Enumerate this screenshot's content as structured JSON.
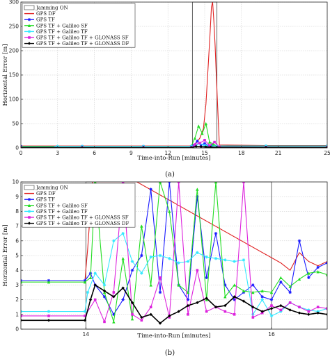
{
  "chart_data": [
    {
      "type": "line",
      "panel_caption": "(a)",
      "xlabel": "Time-into-Run [minutes]",
      "ylabel": "Horizontal Error [m]",
      "xlim": [
        0,
        25
      ],
      "ylim": [
        0,
        300
      ],
      "xticks": [
        0,
        3,
        6,
        9,
        12,
        15,
        18,
        21,
        25
      ],
      "yticks": [
        0,
        50,
        100,
        150,
        200,
        250,
        300
      ],
      "grid": true,
      "legend_position": "top-left",
      "jamming_band": [
        14,
        16
      ],
      "series": [
        {
          "name": "Jamming ON",
          "color": "#666666",
          "style": "box",
          "x": [],
          "y": []
        },
        {
          "name": "GPS DF",
          "color": "#e02020",
          "marker": "none",
          "x": [
            0,
            5,
            10,
            14,
            14.3,
            14.6,
            14.9,
            15.1,
            15.3,
            15.45,
            15.55,
            15.65,
            15.75,
            15.85,
            15.95,
            16.2,
            20,
            25
          ],
          "y": [
            4,
            4,
            4,
            4,
            10,
            20,
            40,
            90,
            175,
            240,
            290,
            300,
            260,
            210,
            148,
            6,
            5,
            5
          ]
        },
        {
          "name": "GPS TF",
          "color": "#1a1aff",
          "marker": "star",
          "x": [
            0,
            5,
            10,
            13.9,
            14.1,
            14.4,
            14.7,
            15.0,
            15.3,
            15.6,
            16.0,
            20,
            25
          ],
          "y": [
            3.5,
            3.5,
            3.5,
            3.5,
            5,
            14,
            6,
            9,
            4,
            5,
            4,
            4,
            4
          ]
        },
        {
          "name": "GPS TF + Galileo SF",
          "color": "#22dd22",
          "marker": "triangle",
          "x": [
            0,
            5,
            10,
            13.9,
            14.2,
            14.5,
            14.8,
            15.1,
            15.4,
            15.7,
            16.0,
            20,
            25
          ],
          "y": [
            3.2,
            3.2,
            3.3,
            3.3,
            20,
            45,
            30,
            50,
            12,
            8,
            4,
            4,
            4
          ]
        },
        {
          "name": "GPS TF + Galileo TF",
          "color": "#33e8ff",
          "marker": "star",
          "x": [
            0,
            2.8,
            3.0,
            5,
            10,
            13.9,
            14.3,
            14.6,
            15.0,
            15.4,
            16.0,
            20,
            25
          ],
          "y": [
            1.2,
            1.2,
            3.3,
            3.3,
            3.3,
            3.4,
            6,
            9,
            5,
            4,
            4,
            4,
            4
          ]
        },
        {
          "name": "GPS TF + Galileo TF + GLONASS SF",
          "color": "#dd22dd",
          "marker": "square",
          "x": [
            0,
            5,
            10,
            13.9,
            14.2,
            14.6,
            15.0,
            15.4,
            15.8,
            16.2,
            20,
            25
          ],
          "y": [
            0.9,
            1,
            1,
            1,
            7,
            10,
            16,
            5,
            12,
            2,
            1.5,
            1.5
          ]
        },
        {
          "name": "GPS TF + Galileo TF + GLONASS DF",
          "color": "#000000",
          "marker": "diamond",
          "x": [
            0,
            5,
            10,
            13.9,
            14.3,
            14.7,
            15.1,
            15.5,
            16.0,
            20,
            25
          ],
          "y": [
            0.6,
            0.6,
            0.7,
            0.7,
            3,
            2.5,
            2,
            1.5,
            1.3,
            1.1,
            1
          ]
        }
      ]
    },
    {
      "type": "line",
      "panel_caption": "(b)",
      "xlabel": "Time-into-Run [minutes]",
      "ylabel": "Horizontal Error [m]",
      "xlim": [
        13.3,
        16.6
      ],
      "ylim": [
        0,
        10
      ],
      "xticks": [
        14,
        16
      ],
      "yticks": [
        0,
        1,
        2,
        3,
        4,
        5,
        6,
        7,
        8,
        9,
        10
      ],
      "grid": true,
      "legend_position": "top-left",
      "jamming_band": [
        14,
        16
      ],
      "series": [
        {
          "name": "Jamming ON",
          "color": "#666666",
          "style": "box",
          "x": [],
          "y": []
        },
        {
          "name": "GPS DF",
          "color": "#e02020",
          "marker": "none",
          "x": [
            13.3,
            13.6,
            13.99,
            14.02,
            14.07,
            14.12,
            14.15,
            14.2,
            14.3,
            14.4,
            14.45,
            14.5,
            14.55,
            16.1,
            16.2,
            16.3,
            16.4,
            16.5,
            16.6
          ],
          "y": [
            3.3,
            3.3,
            3.3,
            5.5,
            10,
            10,
            10,
            10,
            10,
            10,
            10,
            10,
            10,
            4.5,
            4.0,
            5.2,
            4.6,
            4.3,
            4.6
          ]
        },
        {
          "name": "GPS TF",
          "color": "#1a1aff",
          "marker": "star",
          "x": [
            13.3,
            13.6,
            13.99,
            14.05,
            14.1,
            14.2,
            14.3,
            14.4,
            14.5,
            14.6,
            14.7,
            14.8,
            14.9,
            15.0,
            15.1,
            15.2,
            15.3,
            15.4,
            15.5,
            15.6,
            15.7,
            15.8,
            15.9,
            16.0,
            16.1,
            16.2,
            16.3,
            16.4,
            16.5,
            16.6
          ],
          "y": [
            3.3,
            3.3,
            3.3,
            3.8,
            3.0,
            2.2,
            1.0,
            2.0,
            4.0,
            5.0,
            9.5,
            2.5,
            10,
            3.0,
            2.0,
            9.0,
            3.5,
            6.5,
            3.0,
            2.0,
            2.5,
            3.0,
            2.2,
            2.0,
            3.2,
            2.5,
            6.0,
            3.5,
            4.2,
            4.5
          ]
        },
        {
          "name": "GPS TF + Galileo SF",
          "color": "#22dd22",
          "marker": "triangle",
          "x": [
            13.3,
            13.6,
            13.99,
            14.05,
            14.1,
            14.2,
            14.3,
            14.4,
            14.5,
            14.6,
            14.7,
            14.8,
            14.9,
            15.0,
            15.1,
            15.2,
            15.3,
            15.4,
            15.5,
            15.6,
            15.7,
            15.8,
            15.9,
            16.0,
            16.1,
            16.2,
            16.3,
            16.4,
            16.5,
            16.6
          ],
          "y": [
            3.2,
            3.2,
            3.2,
            3.5,
            10,
            2.5,
            0.5,
            4.8,
            0.7,
            7.0,
            3.0,
            10,
            8.0,
            3.0,
            2.5,
            9.5,
            2.0,
            10,
            2.2,
            3.0,
            2.6,
            2.5,
            2.6,
            2.5,
            3.5,
            2.9,
            3.4,
            3.8,
            3.9,
            3.7
          ]
        },
        {
          "name": "GPS TF + Galileo TF",
          "color": "#33e8ff",
          "marker": "star",
          "x": [
            13.3,
            13.6,
            13.99,
            14.02,
            14.1,
            14.2,
            14.3,
            14.4,
            14.5,
            14.6,
            14.7,
            14.8,
            14.9,
            15.0,
            15.1,
            15.2,
            15.3,
            15.4,
            15.5,
            15.6,
            15.7,
            15.8,
            15.9,
            16.0,
            16.1,
            16.2,
            16.3,
            16.4,
            16.5,
            16.6
          ],
          "y": [
            1.2,
            1.2,
            1.2,
            2.5,
            3.8,
            3.0,
            6.0,
            6.5,
            4.6,
            3.8,
            4.9,
            5.0,
            4.8,
            4.5,
            4.6,
            5.2,
            4.9,
            4.8,
            4.7,
            4.6,
            4.7,
            1.0,
            2.0,
            0.9,
            1.2,
            1.8,
            1.5,
            1.3,
            1.2,
            1.4
          ]
        },
        {
          "name": "GPS TF + Galileo TF + GLONASS SF",
          "color": "#dd22dd",
          "marker": "square",
          "x": [
            13.3,
            13.6,
            13.99,
            14.1,
            14.2,
            14.3,
            14.4,
            14.5,
            14.6,
            14.7,
            14.8,
            14.9,
            15.0,
            15.1,
            15.2,
            15.3,
            15.4,
            15.5,
            15.6,
            15.7,
            15.8,
            15.9,
            16.0,
            16.1,
            16.2,
            16.3,
            16.4,
            16.5,
            16.6
          ],
          "y": [
            0.9,
            0.9,
            0.9,
            2.0,
            0.5,
            2.5,
            10,
            1.0,
            0.6,
            1.5,
            3.5,
            0.8,
            10,
            1.0,
            4.0,
            1.2,
            1.5,
            1.2,
            1.0,
            10,
            0.8,
            1.1,
            1.6,
            1.3,
            1.8,
            1.5,
            1.2,
            1.5,
            1.4
          ]
        },
        {
          "name": "GPS TF + Galileo TF + GLONASS DF",
          "color": "#000000",
          "marker": "diamond",
          "x": [
            13.3,
            13.6,
            13.99,
            14.05,
            14.1,
            14.2,
            14.3,
            14.4,
            14.5,
            14.6,
            14.7,
            14.8,
            14.9,
            15.0,
            15.1,
            15.2,
            15.3,
            15.4,
            15.5,
            15.6,
            15.7,
            15.8,
            15.9,
            16.0,
            16.1,
            16.2,
            16.3,
            16.4,
            16.5,
            16.6
          ],
          "y": [
            0.6,
            0.6,
            0.6,
            2.0,
            3.0,
            2.6,
            2.2,
            2.8,
            1.8,
            0.8,
            1.0,
            0.4,
            0.9,
            1.2,
            1.6,
            1.8,
            2.1,
            1.5,
            1.6,
            2.2,
            1.9,
            1.5,
            1.2,
            1.4,
            1.6,
            1.3,
            1.1,
            1.0,
            1.1,
            1.0
          ]
        }
      ]
    }
  ]
}
